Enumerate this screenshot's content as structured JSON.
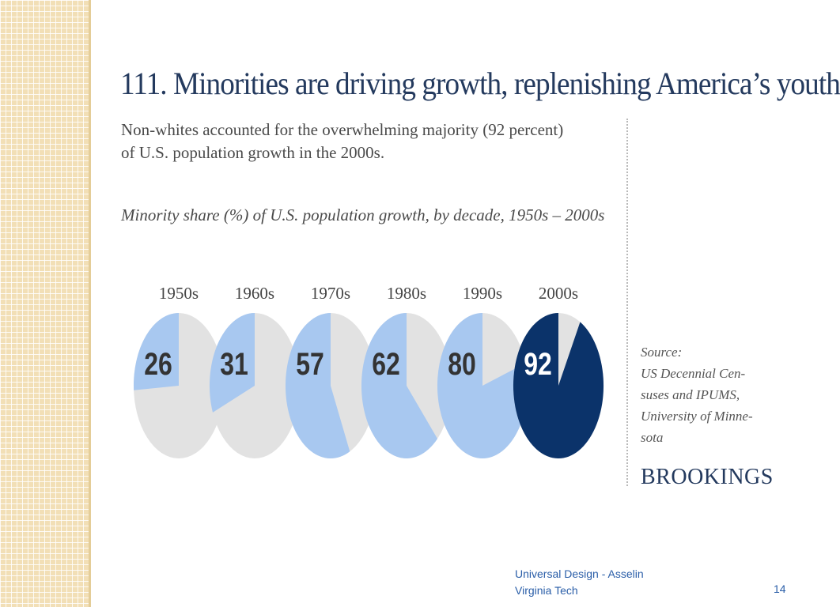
{
  "slide": {
    "title": "111. Minorities are driving growth, replenishing America’s youth",
    "subtitle": "Non-whites accounted for the overwhelming majority (92 percent) of U.S. population growth in the 2000s.",
    "source_lines": [
      "Source:",
      "US Decennial Cen-",
      "suses and IPUMS,",
      "University of Minne-",
      "sota"
    ],
    "brand": "BROOKINGS",
    "footer_line1": "Universal Design - Asselin",
    "footer_line2": "Virginia Tech",
    "page_number": "14"
  },
  "colors": {
    "minority_light": "#a8c8f0",
    "minority_highlight": "#0b336a",
    "remainder": "#e2e2e2",
    "label_dark": "#333333",
    "label_light": "#ffffff"
  },
  "chart_data": {
    "type": "pie",
    "title": "Minority share (%) of U.S. population growth, by decade, 1950s – 2000s",
    "categories": [
      "1950s",
      "1960s",
      "1970s",
      "1980s",
      "1990s",
      "2000s"
    ],
    "values": [
      26,
      31,
      57,
      62,
      80,
      92
    ],
    "unit": "%",
    "highlight_index": 5
  }
}
